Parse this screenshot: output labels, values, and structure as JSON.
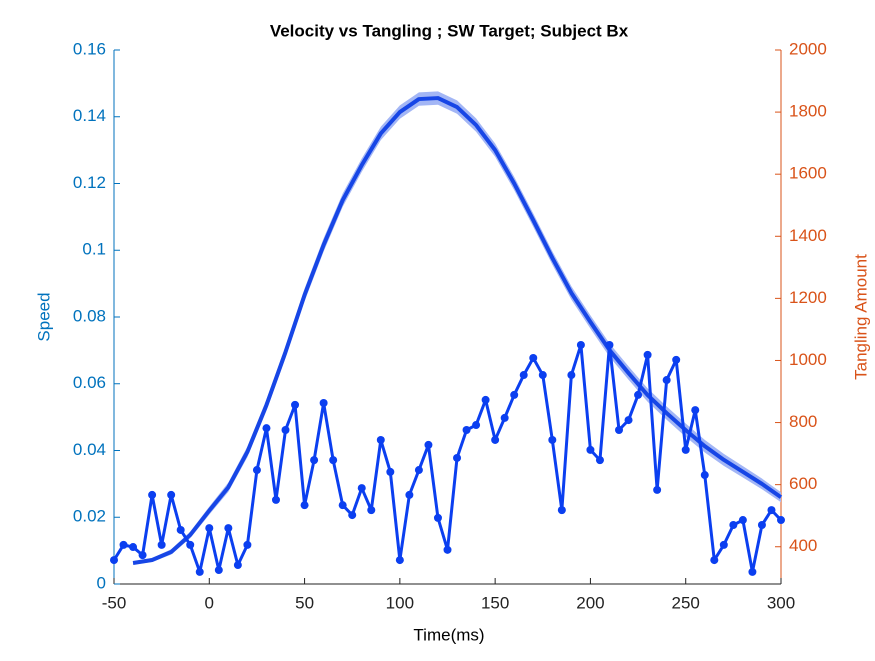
{
  "chart_data": {
    "type": "line",
    "title": "Velocity vs Tangling ; SW Target; Subject Bx",
    "x_label": "Time(ms)",
    "y_label": "Speed",
    "y2_label": "Tangling Amount",
    "xlim": [
      -50,
      300
    ],
    "xticks": [
      -50,
      0,
      50,
      100,
      150,
      200,
      250,
      300
    ],
    "ylim": [
      0,
      0.16
    ],
    "yticks": [
      0,
      0.02,
      0.04,
      0.06,
      0.08,
      0.1,
      0.12,
      0.14,
      0.16
    ],
    "y2lim": [
      280,
      2000
    ],
    "y2ticks": [
      400,
      600,
      800,
      1000,
      1200,
      1400,
      1600,
      1800,
      2000
    ],
    "y_color": "#0072bd",
    "y2_color": "#d95319",
    "series": [
      {
        "name": "Speed",
        "color": "#1746e6",
        "band_color": "#a3b6f5",
        "markers": false,
        "x": [
          -40,
          -30,
          -20,
          -10,
          0,
          10,
          20,
          30,
          40,
          50,
          60,
          70,
          80,
          90,
          100,
          110,
          120,
          130,
          140,
          150,
          160,
          170,
          180,
          190,
          200,
          210,
          220,
          230,
          240,
          250,
          260,
          270,
          280,
          290,
          300
        ],
        "values": [
          0.0063,
          0.0072,
          0.0096,
          0.0147,
          0.022,
          0.029,
          0.0396,
          0.0536,
          0.0695,
          0.0866,
          0.1016,
          0.115,
          0.1255,
          0.135,
          0.1414,
          0.1453,
          0.1456,
          0.1429,
          0.1375,
          0.13,
          0.12,
          0.109,
          0.0977,
          0.0872,
          0.0785,
          0.0701,
          0.0632,
          0.0566,
          0.0512,
          0.0461,
          0.0413,
          0.0372,
          0.0336,
          0.03,
          0.026
        ],
        "error": [
          0.0005,
          0.0006,
          0.0008,
          0.001,
          0.0012,
          0.0014,
          0.0016,
          0.0017,
          0.0018,
          0.0019,
          0.002,
          0.002,
          0.002,
          0.002,
          0.002,
          0.002,
          0.002,
          0.002,
          0.002,
          0.002,
          0.002,
          0.002,
          0.002,
          0.002,
          0.002,
          0.002,
          0.002,
          0.002,
          0.002,
          0.002,
          0.0019,
          0.0018,
          0.0017,
          0.0016,
          0.0015
        ]
      },
      {
        "name": "Tangling",
        "color": "#0b3ff0",
        "axis": "y2",
        "markers": true,
        "x": [
          -50,
          -45,
          -40,
          -35,
          -30,
          -25,
          -20,
          -15,
          -10,
          -5,
          0,
          5,
          10,
          15,
          20,
          25,
          30,
          35,
          40,
          45,
          50,
          55,
          60,
          65,
          70,
          75,
          80,
          85,
          90,
          95,
          100,
          105,
          110,
          115,
          120,
          125,
          130,
          135,
          140,
          145,
          150,
          155,
          160,
          165,
          170,
          175,
          180,
          185,
          190,
          195,
          200,
          205,
          210,
          215,
          220,
          225,
          230,
          235,
          240,
          245,
          250,
          255,
          260,
          265,
          270,
          275,
          280,
          285,
          290,
          295,
          300
        ],
        "values": [
          357,
          406,
          399,
          373,
          567,
          406,
          567,
          454,
          406,
          319,
          460,
          325,
          460,
          341,
          406,
          647,
          782,
          551,
          776,
          857,
          534,
          679,
          863,
          679,
          534,
          502,
          589,
          518,
          744,
          641,
          357,
          567,
          647,
          728,
          493,
          390,
          686,
          776,
          792,
          873,
          744,
          815,
          889,
          953,
          1008,
          953,
          744,
          518,
          953,
          1050,
          712,
          679,
          1050,
          776,
          808,
          889,
          1018,
          583,
          937,
          1002,
          712,
          840,
          631,
          357,
          406,
          470,
          486,
          319,
          470,
          518,
          486
        ]
      }
    ]
  }
}
